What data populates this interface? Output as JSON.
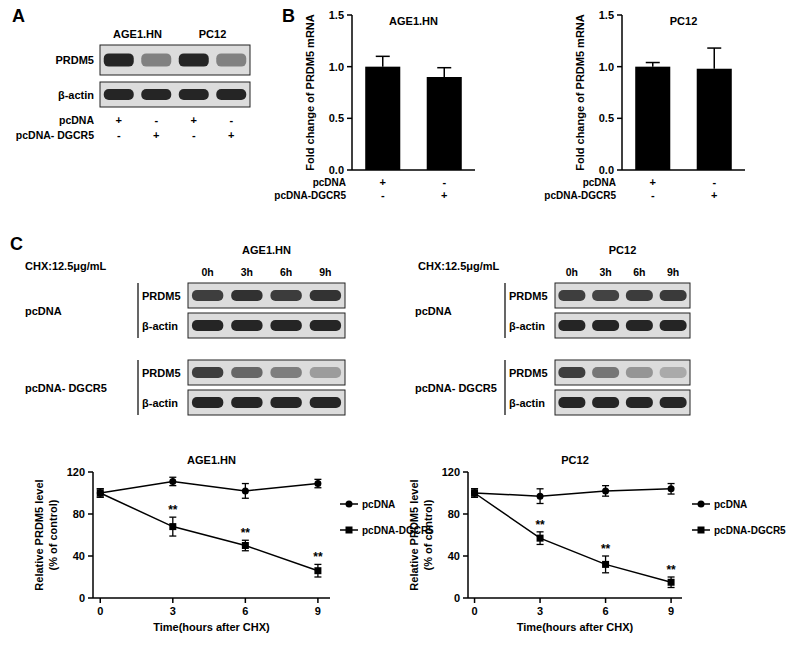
{
  "figure": {
    "panel_labels": [
      "A",
      "B",
      "C"
    ],
    "blot_a": {
      "cells": [
        "AGE1.HN",
        "PC12"
      ],
      "rows": [
        "PRDM5",
        "β-actin"
      ],
      "treatments": [
        {
          "label": "pcDNA",
          "signs": [
            "+",
            "-",
            "+",
            "-"
          ]
        },
        {
          "label": "pcDNA- DGCR5",
          "signs": [
            "-",
            "+",
            "-",
            "+"
          ]
        }
      ]
    },
    "blots_c": [
      {
        "treatment_label": "CHX:12.5μg/mL",
        "cell": "AGE1.HN",
        "times": [
          "0h",
          "3h",
          "6h",
          "9h"
        ],
        "groups": [
          {
            "label": "pcDNA",
            "rows": [
              "PRDM5",
              "β-actin"
            ]
          },
          {
            "label": "pcDNA- DGCR5",
            "rows": [
              "PRDM5",
              "β-actin"
            ]
          }
        ]
      },
      {
        "treatment_label": "CHX:12.5μg/mL",
        "cell": "PC12",
        "times": [
          "0h",
          "3h",
          "6h",
          "9h"
        ],
        "groups": [
          {
            "label": "pcDNA",
            "rows": [
              "PRDM5",
              "β-actin"
            ]
          },
          {
            "label": "pcDNA- DGCR5",
            "rows": [
              "PRDM5",
              "β-actin"
            ]
          }
        ]
      }
    ]
  },
  "chart_data": [
    {
      "type": "bar",
      "title": "AGE1.HN",
      "y_label": "Fold change of PRDM5 mRNA",
      "categories": [
        null,
        null
      ],
      "values": [
        1.0,
        0.9
      ],
      "errors": [
        0.1,
        0.09
      ],
      "color": "#000000",
      "ylim": [
        0,
        1.5
      ],
      "yticks": [
        {
          "value": 0,
          "label": "0.0"
        },
        0.5,
        {
          "value": 1,
          "label": "1.0"
        },
        1.5
      ],
      "treatments": [
        {
          "label": "pcDNA",
          "signs": [
            "+",
            "-"
          ]
        },
        {
          "label": "pcDNA-DGCR5",
          "signs": [
            "-",
            "+"
          ]
        }
      ]
    },
    {
      "type": "bar",
      "title": "PC12",
      "y_label": "Fold change of PRDM5 mRNA",
      "categories": [
        null,
        null
      ],
      "values": [
        1.0,
        0.98
      ],
      "errors": [
        0.04,
        0.2
      ],
      "color": "#000000",
      "ylim": [
        0,
        1.5
      ],
      "yticks": [
        {
          "value": 0,
          "label": "0.0"
        },
        0.5,
        {
          "value": 1,
          "label": "1.0"
        },
        1.5
      ],
      "treatments": [
        {
          "label": "pcDNA",
          "signs": [
            "+",
            "-"
          ]
        },
        {
          "label": "pcDNA-DGCR5",
          "signs": [
            "-",
            "+"
          ]
        }
      ]
    },
    {
      "type": "line",
      "title": "AGE1.HN",
      "x_label": "Time(hours after CHX)",
      "y_label": [
        "Relative PRDM5 level",
        "(% of control)"
      ],
      "x": [
        0,
        3,
        6,
        9
      ],
      "xlim": [
        -0.3,
        9.5
      ],
      "xticks": [
        0,
        3,
        6,
        9
      ],
      "ylim": [
        0,
        120
      ],
      "yticks": [
        0,
        40,
        80,
        120
      ],
      "legend": "right",
      "series": [
        {
          "name": "pcDNA",
          "color": "#000000",
          "marker": "circle",
          "values": [
            100,
            111,
            102,
            109
          ],
          "errors": [
            4,
            4,
            7,
            4
          ]
        },
        {
          "name": "pcDNA-DGCR5",
          "color": "#000000",
          "marker": "square",
          "values": [
            100,
            68,
            50,
            26
          ],
          "errors": [
            4,
            9,
            5,
            6
          ],
          "annotations": [
            null,
            "**",
            "**",
            "**"
          ]
        }
      ]
    },
    {
      "type": "line",
      "title": "PC12",
      "x_label": "Time(hours after CHX)",
      "y_label": [
        "Relative PRDM5 level",
        "(% of control)"
      ],
      "x": [
        0,
        3,
        6,
        9
      ],
      "xlim": [
        -0.3,
        9.5
      ],
      "xticks": [
        0,
        3,
        6,
        9
      ],
      "ylim": [
        0,
        120
      ],
      "yticks": [
        0,
        40,
        80,
        120
      ],
      "legend": "right",
      "series": [
        {
          "name": "pcDNA",
          "color": "#000000",
          "marker": "circle",
          "values": [
            100,
            97,
            102,
            104
          ],
          "errors": [
            4,
            7,
            5,
            5
          ]
        },
        {
          "name": "pcDNA-DGCR5",
          "color": "#000000",
          "marker": "square",
          "values": [
            100,
            57,
            32,
            15
          ],
          "errors": [
            4,
            6,
            8,
            5
          ],
          "annotations": [
            null,
            "**",
            "**",
            "**"
          ]
        }
      ]
    }
  ]
}
